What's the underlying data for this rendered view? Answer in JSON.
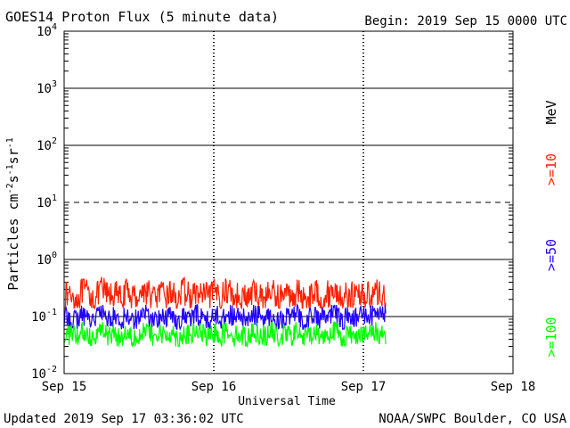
{
  "header": {
    "title": "GOES14 Proton Flux (5 minute data)",
    "begin": "Begin: 2019 Sep 15 0000 UTC"
  },
  "footer": {
    "updated": "Updated 2019 Sep 17 03:36:02 UTC",
    "credit": "NOAA/SWPC Boulder, CO USA"
  },
  "chart_data": {
    "type": "line",
    "title": "GOES14 Proton Flux (5 minute data)",
    "xlabel": "Universal Time",
    "ylabel": "Particles cm-2 s-1 sr-1",
    "y_scale": "log",
    "ylim": [
      0.01,
      10000
    ],
    "xlim": [
      "2019-09-15 00:00",
      "2019-09-18 00:00"
    ],
    "x_tick_labels": [
      "Sep 15",
      "Sep 16",
      "Sep 17",
      "Sep 18"
    ],
    "y_tick_labels": [
      {
        "base": "10",
        "exp": "-2"
      },
      {
        "base": "10",
        "exp": "-1"
      },
      {
        "base": "10",
        "exp": "0"
      },
      {
        "base": "10",
        "exp": "1"
      },
      {
        "base": "10",
        "exp": "2"
      },
      {
        "base": "10",
        "exp": "3"
      },
      {
        "base": "10",
        "exp": "4"
      }
    ],
    "data_end": "2019-09-17 03:35",
    "legend_unit": "MeV",
    "series": [
      {
        "name": ">=10",
        "color": "#ff2000",
        "typical_range": [
          0.14,
          0.5
        ],
        "values_sampled_hourly": [
          0.22,
          0.25,
          0.2,
          0.28,
          0.24,
          0.21,
          0.3,
          0.23,
          0.26,
          0.2,
          0.27,
          0.22,
          0.25,
          0.29,
          0.21,
          0.24,
          0.23,
          0.26,
          0.2,
          0.28,
          0.22,
          0.25,
          0.24,
          0.21,
          0.27,
          0.23,
          0.3,
          0.22,
          0.25,
          0.2,
          0.26,
          0.24,
          0.22,
          0.28,
          0.21,
          0.25,
          0.23,
          0.27,
          0.2,
          0.24,
          0.26,
          0.22,
          0.25,
          0.29,
          0.21,
          0.24,
          0.23,
          0.26,
          0.22,
          0.28,
          0.24,
          0.25
        ]
      },
      {
        "name": ">=50",
        "color": "#2000ff",
        "typical_range": [
          0.06,
          0.16
        ],
        "values_sampled_hourly": [
          0.09,
          0.1,
          0.08,
          0.11,
          0.09,
          0.1,
          0.12,
          0.09,
          0.1,
          0.08,
          0.11,
          0.09,
          0.1,
          0.12,
          0.08,
          0.1,
          0.09,
          0.11,
          0.08,
          0.1,
          0.09,
          0.11,
          0.1,
          0.08,
          0.11,
          0.09,
          0.12,
          0.09,
          0.1,
          0.08,
          0.11,
          0.1,
          0.09,
          0.11,
          0.08,
          0.1,
          0.09,
          0.11,
          0.08,
          0.1,
          0.1,
          0.09,
          0.1,
          0.12,
          0.08,
          0.1,
          0.09,
          0.11,
          0.09,
          0.11,
          0.1,
          0.13
        ]
      },
      {
        "name": ">=100",
        "color": "#00ff00",
        "typical_range": [
          0.03,
          0.08
        ],
        "values_sampled_hourly": [
          0.045,
          0.05,
          0.04,
          0.055,
          0.045,
          0.05,
          0.06,
          0.045,
          0.05,
          0.04,
          0.055,
          0.045,
          0.05,
          0.06,
          0.04,
          0.05,
          0.045,
          0.055,
          0.04,
          0.05,
          0.045,
          0.055,
          0.05,
          0.04,
          0.055,
          0.045,
          0.06,
          0.045,
          0.05,
          0.04,
          0.055,
          0.05,
          0.045,
          0.055,
          0.04,
          0.05,
          0.045,
          0.055,
          0.04,
          0.05,
          0.05,
          0.045,
          0.05,
          0.06,
          0.04,
          0.05,
          0.045,
          0.055,
          0.045,
          0.055,
          0.05,
          0.05
        ]
      }
    ]
  }
}
